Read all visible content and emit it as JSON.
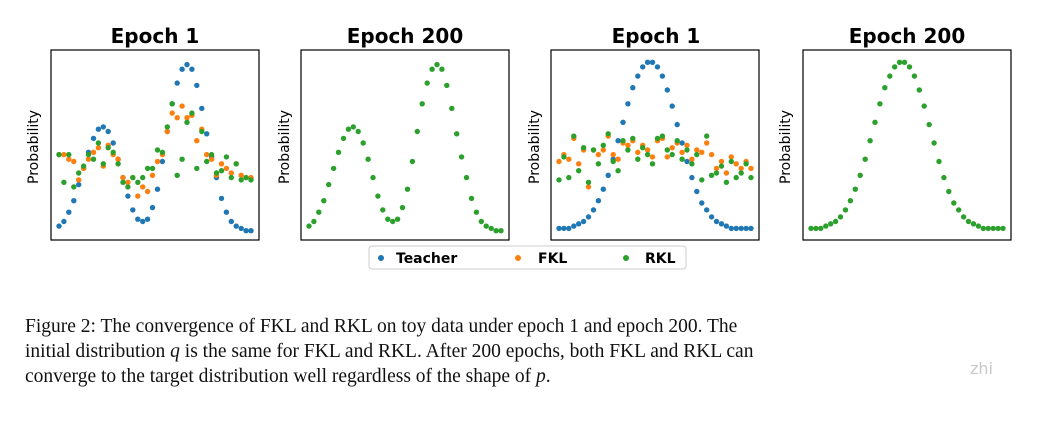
{
  "colors": {
    "teacher": "#1f77b4",
    "fkl": "#ff7f0e",
    "rkl": "#2ca02c",
    "axis": "#000000"
  },
  "legend": {
    "items": [
      {
        "label": "Teacher",
        "color": "#1f77b4"
      },
      {
        "label": "FKL",
        "color": "#ff7f0e"
      },
      {
        "label": "RKL",
        "color": "#2ca02c"
      }
    ]
  },
  "chart_data": [
    {
      "type": "scatter",
      "title": "Epoch 1",
      "ylabel": "Probability",
      "xlabel": "",
      "ylim": [
        0,
        0.0075
      ],
      "series": [
        {
          "name": "Teacher",
          "x": [
            0,
            1,
            2,
            3,
            4,
            5,
            6,
            7,
            8,
            9,
            10,
            11,
            12,
            13,
            14,
            15,
            16,
            17,
            18,
            19,
            20,
            21,
            22,
            23,
            24,
            25,
            26,
            27,
            28,
            29,
            30,
            31,
            32,
            33,
            34,
            35,
            36,
            37,
            38,
            39
          ],
          "values": [
            0.0003,
            0.0005,
            0.0009,
            0.0014,
            0.0021,
            0.0028,
            0.0035,
            0.0041,
            0.0045,
            0.0046,
            0.0044,
            0.0039,
            0.0032,
            0.0024,
            0.0016,
            0.001,
            0.0006,
            0.0005,
            0.0006,
            0.0011,
            0.0019,
            0.0031,
            0.0044,
            0.0056,
            0.0065,
            0.0071,
            0.0073,
            0.0071,
            0.0064,
            0.0054,
            0.0043,
            0.0033,
            0.0024,
            0.0015,
            0.0009,
            0.0005,
            0.0003,
            0.0002,
            0.0001,
            0.0001
          ]
        },
        {
          "name": "FKL",
          "x": [
            0,
            1,
            2,
            3,
            4,
            5,
            6,
            7,
            8,
            9,
            10,
            11,
            12,
            13,
            14,
            15,
            16,
            17,
            18,
            19,
            20,
            21,
            22,
            23,
            24,
            25,
            26,
            27,
            28,
            29,
            30,
            31,
            32,
            33,
            34,
            35,
            36,
            37,
            38,
            39
          ],
          "values": [
            0.0034,
            0.0034,
            0.0032,
            0.0031,
            0.0023,
            0.0028,
            0.0032,
            0.0035,
            0.0037,
            0.0029,
            0.0038,
            0.0034,
            0.0032,
            0.0024,
            0.0022,
            0.0024,
            0.0016,
            0.002,
            0.0018,
            0.0025,
            0.0031,
            0.0034,
            0.0044,
            0.0052,
            0.005,
            0.0055,
            0.005,
            0.0051,
            0.004,
            0.0045,
            0.0034,
            0.0032,
            0.0025,
            0.003,
            0.0028,
            0.0026,
            0.003,
            0.0025,
            0.0024,
            0.0024
          ]
        },
        {
          "name": "RKL",
          "x": [
            0,
            1,
            2,
            3,
            4,
            5,
            6,
            7,
            8,
            9,
            10,
            11,
            12,
            13,
            14,
            15,
            16,
            17,
            18,
            19,
            20,
            21,
            22,
            23,
            24,
            25,
            26,
            27,
            28,
            29,
            30,
            31,
            32,
            33,
            34,
            35,
            36,
            37,
            38,
            39
          ],
          "values": [
            0.0034,
            0.0022,
            0.0034,
            0.002,
            0.0026,
            0.0029,
            0.0034,
            0.0032,
            0.0039,
            0.003,
            0.0037,
            0.0035,
            0.003,
            0.0022,
            0.002,
            0.0024,
            0.0022,
            0.0024,
            0.0028,
            0.0028,
            0.0036,
            0.0035,
            0.0046,
            0.0056,
            0.0025,
            0.0032,
            0.0048,
            0.0052,
            0.0028,
            0.0044,
            0.0031,
            0.0034,
            0.0026,
            0.0027,
            0.0033,
            0.0024,
            0.003,
            0.0023,
            0.0024,
            0.0023
          ]
        }
      ]
    },
    {
      "type": "scatter",
      "title": "Epoch 200",
      "ylabel": "Probability",
      "xlabel": "",
      "ylim": [
        0,
        0.0075
      ],
      "series": [
        {
          "name": "RKL",
          "x": [
            0,
            1,
            2,
            3,
            4,
            5,
            6,
            7,
            8,
            9,
            10,
            11,
            12,
            13,
            14,
            15,
            16,
            17,
            18,
            19,
            20,
            21,
            22,
            23,
            24,
            25,
            26,
            27,
            28,
            29,
            30,
            31,
            32,
            33,
            34,
            35,
            36,
            37,
            38,
            39
          ],
          "values": [
            0.0003,
            0.0005,
            0.0009,
            0.0014,
            0.0021,
            0.0028,
            0.0035,
            0.0041,
            0.0045,
            0.0046,
            0.0044,
            0.0039,
            0.0032,
            0.0024,
            0.0016,
            0.001,
            0.0006,
            0.0005,
            0.0006,
            0.0011,
            0.0019,
            0.0031,
            0.0044,
            0.0056,
            0.0065,
            0.0071,
            0.0073,
            0.0071,
            0.0064,
            0.0054,
            0.0043,
            0.0033,
            0.0024,
            0.0015,
            0.0009,
            0.0005,
            0.0003,
            0.0002,
            0.0001,
            0.0001
          ]
        }
      ]
    },
    {
      "type": "scatter",
      "title": "Epoch 1",
      "ylabel": "Probability",
      "xlabel": "",
      "ylim": [
        0,
        0.0075
      ],
      "series": [
        {
          "name": "Teacher",
          "x": [
            0,
            1,
            2,
            3,
            4,
            5,
            6,
            7,
            8,
            9,
            10,
            11,
            12,
            13,
            14,
            15,
            16,
            17,
            18,
            19,
            20,
            21,
            22,
            23,
            24,
            25,
            26,
            27,
            28,
            29,
            30,
            31,
            32,
            33,
            34,
            35,
            36,
            37,
            38,
            39
          ],
          "values": [
            0.0002,
            0.0002,
            0.0002,
            0.0003,
            0.0004,
            0.0005,
            0.0007,
            0.001,
            0.0014,
            0.0019,
            0.0025,
            0.0032,
            0.004,
            0.0048,
            0.0056,
            0.0063,
            0.0068,
            0.0072,
            0.0074,
            0.0074,
            0.0072,
            0.0068,
            0.0062,
            0.0055,
            0.0047,
            0.0039,
            0.0031,
            0.0024,
            0.0018,
            0.0013,
            0.001,
            0.0007,
            0.0005,
            0.0004,
            0.0003,
            0.0002,
            0.0002,
            0.0002,
            0.0002,
            0.0002
          ]
        },
        {
          "name": "FKL",
          "x": [
            0,
            1,
            2,
            3,
            4,
            5,
            6,
            7,
            8,
            9,
            10,
            11,
            12,
            13,
            14,
            15,
            16,
            17,
            18,
            19,
            20,
            21,
            22,
            23,
            24,
            25,
            26,
            27,
            28,
            29,
            30,
            31,
            32,
            33,
            34,
            35,
            36,
            37,
            38,
            39
          ],
          "values": [
            0.0031,
            0.0034,
            0.0032,
            0.0041,
            0.003,
            0.0036,
            0.002,
            0.0036,
            0.0034,
            0.0036,
            0.0042,
            0.0034,
            0.0032,
            0.0039,
            0.0038,
            0.004,
            0.0035,
            0.0038,
            0.0036,
            0.0033,
            0.004,
            0.0041,
            0.0033,
            0.0037,
            0.0039,
            0.0035,
            0.0038,
            0.0032,
            0.0036,
            0.0035,
            0.0039,
            0.0034,
            0.0028,
            0.0031,
            0.0026,
            0.0033,
            0.003,
            0.0028,
            0.0031,
            0.0028
          ]
        },
        {
          "name": "RKL",
          "x": [
            0,
            1,
            2,
            3,
            4,
            5,
            6,
            7,
            8,
            9,
            10,
            11,
            12,
            13,
            14,
            15,
            16,
            17,
            18,
            19,
            20,
            21,
            22,
            23,
            24,
            25,
            26,
            27,
            28,
            29,
            30,
            31,
            32,
            33,
            34,
            35,
            36,
            37,
            38,
            39
          ],
          "values": [
            0.0023,
            0.0033,
            0.0024,
            0.0042,
            0.0027,
            0.0037,
            0.0022,
            0.0036,
            0.003,
            0.0038,
            0.0043,
            0.0031,
            0.0027,
            0.004,
            0.0036,
            0.0041,
            0.0032,
            0.0037,
            0.0034,
            0.003,
            0.0041,
            0.0042,
            0.0036,
            0.0034,
            0.004,
            0.0032,
            0.0036,
            0.003,
            0.0034,
            0.0023,
            0.0042,
            0.0025,
            0.0026,
            0.0029,
            0.0022,
            0.0031,
            0.0024,
            0.0026,
            0.003,
            0.0024
          ]
        }
      ]
    },
    {
      "type": "scatter",
      "title": "Epoch 200",
      "ylabel": "Probability",
      "xlabel": "",
      "ylim": [
        0,
        0.0075
      ],
      "series": [
        {
          "name": "RKL",
          "x": [
            0,
            1,
            2,
            3,
            4,
            5,
            6,
            7,
            8,
            9,
            10,
            11,
            12,
            13,
            14,
            15,
            16,
            17,
            18,
            19,
            20,
            21,
            22,
            23,
            24,
            25,
            26,
            27,
            28,
            29,
            30,
            31,
            32,
            33,
            34,
            35,
            36,
            37,
            38,
            39
          ],
          "values": [
            0.0002,
            0.0002,
            0.0002,
            0.0003,
            0.0004,
            0.0005,
            0.0007,
            0.001,
            0.0014,
            0.0019,
            0.0025,
            0.0032,
            0.004,
            0.0048,
            0.0056,
            0.0063,
            0.0068,
            0.0072,
            0.0074,
            0.0074,
            0.0072,
            0.0068,
            0.0062,
            0.0055,
            0.0047,
            0.0039,
            0.0031,
            0.0024,
            0.0018,
            0.0013,
            0.001,
            0.0007,
            0.0005,
            0.0004,
            0.0003,
            0.0002,
            0.0002,
            0.0002,
            0.0002,
            0.0002
          ]
        }
      ]
    }
  ],
  "caption": {
    "line1": "Figure 2: The convergence of FKL and RKL on toy data under epoch 1 and epoch 200. The",
    "line2_a": "initial distribution ",
    "line2_q": "q",
    "line2_b": " is the same for FKL and RKL. After 200 epochs, both FKL and RKL can",
    "line3_a": "converge to the target distribution well regardless of the shape of ",
    "line3_p": "p",
    "line3_b": "."
  },
  "watermark": "zhi"
}
